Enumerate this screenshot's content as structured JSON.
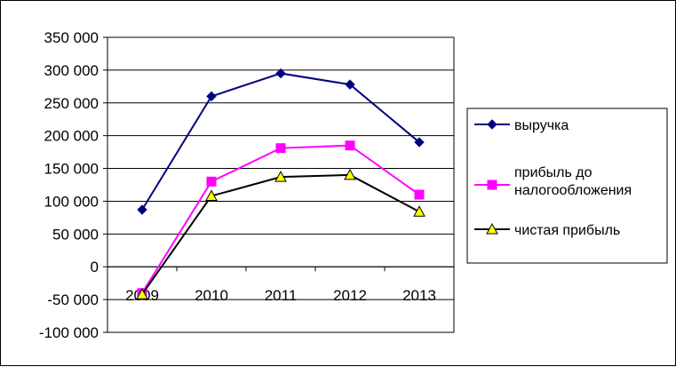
{
  "chart_data": {
    "type": "line",
    "title": "",
    "xlabel": "",
    "ylabel": "",
    "categories": [
      "2009",
      "2010",
      "2011",
      "2012",
      "2013"
    ],
    "ylim": [
      -100000,
      350000
    ],
    "y_ticks": [
      350000,
      300000,
      250000,
      200000,
      150000,
      100000,
      50000,
      0,
      -50000,
      -100000
    ],
    "y_tick_labels": [
      "350 000",
      "300 000",
      "250 000",
      "200 000",
      "150 000",
      "100 000",
      "50 000",
      "0",
      "-50 000",
      "-100 000"
    ],
    "grid": "horizontal major gridlines",
    "legend_position": "right",
    "series": [
      {
        "name": "выручка",
        "values": [
          87000,
          260000,
          295000,
          278000,
          190000
        ],
        "color": "#000080",
        "marker": "diamond"
      },
      {
        "name": "прибыль до налогообложения",
        "legend_lines": [
          "прибыль до",
          "налогообложения"
        ],
        "values": [
          -40000,
          130000,
          181000,
          185000,
          110000
        ],
        "color": "#FF00FF",
        "marker": "square"
      },
      {
        "name": "чистая прибыль",
        "values": [
          -42000,
          108000,
          137000,
          140000,
          84000
        ],
        "color": "#000000",
        "marker_fill": "#FFFF00",
        "marker": "triangle"
      }
    ]
  }
}
